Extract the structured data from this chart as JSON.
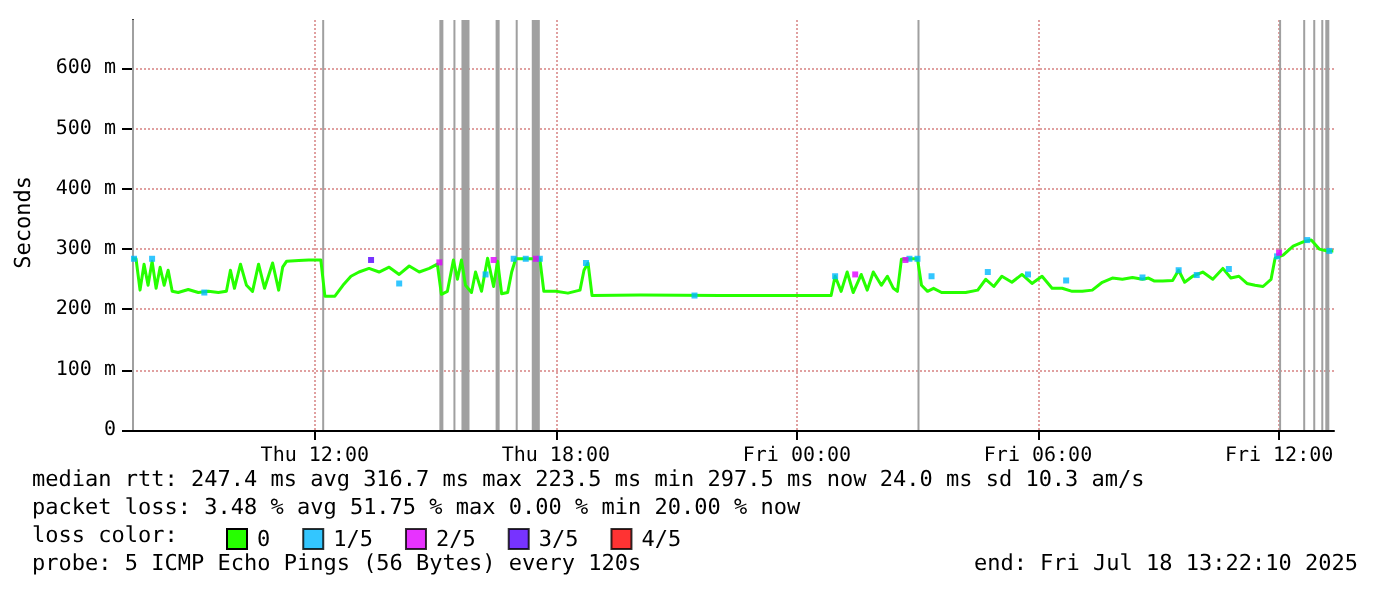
{
  "chart_data": {
    "type": "line",
    "ylabel": "Seconds",
    "xlim": [
      "2025-07-17T07:27",
      "2025-07-18T13:22"
    ],
    "xticks": [
      {
        "value": "2025-07-17T12:00",
        "label": "Thu 12:00"
      },
      {
        "value": "2025-07-17T18:00",
        "label": "Thu 18:00"
      },
      {
        "value": "2025-07-18T00:00",
        "label": "Fri 00:00"
      },
      {
        "value": "2025-07-18T06:00",
        "label": "Fri 06:00"
      },
      {
        "value": "2025-07-18T12:00",
        "label": "Fri 12:00"
      }
    ],
    "ylim": [
      0,
      680
    ],
    "yticks": [
      0,
      {
        "value": 100,
        "label": "100 m"
      },
      {
        "value": 200,
        "label": "200 m"
      },
      {
        "value": 300,
        "label": "300 m"
      },
      {
        "value": 400,
        "label": "400 m"
      },
      {
        "value": 500,
        "label": "500 m"
      },
      {
        "value": 600,
        "label": "600 m"
      }
    ],
    "grid": true,
    "legend": "bottom",
    "legend_title": "loss color:",
    "series": [
      {
        "name": "0",
        "color": "#26ff00",
        "marker": "none",
        "line_style": "solid",
        "x": [
          "2025-07-17T07:27",
          "2025-07-17T07:33",
          "2025-07-17T07:39",
          "2025-07-17T07:45",
          "2025-07-17T07:51",
          "2025-07-17T07:57",
          "2025-07-17T08:03",
          "2025-07-17T08:09",
          "2025-07-17T08:15",
          "2025-07-17T08:21",
          "2025-07-17T08:27",
          "2025-07-17T08:36",
          "2025-07-17T08:51",
          "2025-07-17T09:06",
          "2025-07-17T09:21",
          "2025-07-17T09:36",
          "2025-07-17T09:48",
          "2025-07-17T09:54",
          "2025-07-17T10:00",
          "2025-07-17T10:09",
          "2025-07-17T10:18",
          "2025-07-17T10:27",
          "2025-07-17T10:36",
          "2025-07-17T10:45",
          "2025-07-17T10:57",
          "2025-07-17T11:06",
          "2025-07-17T11:12",
          "2025-07-17T11:18",
          "2025-07-17T11:36",
          "2025-07-17T11:51",
          "2025-07-17T12:09",
          "2025-07-17T12:15",
          "2025-07-17T12:30",
          "2025-07-17T12:42",
          "2025-07-17T12:54",
          "2025-07-17T13:06",
          "2025-07-17T13:21",
          "2025-07-17T13:36",
          "2025-07-17T13:51",
          "2025-07-17T14:06",
          "2025-07-17T14:21",
          "2025-07-17T14:36",
          "2025-07-17T14:51",
          "2025-07-17T15:03",
          "2025-07-17T15:09",
          "2025-07-17T15:18",
          "2025-07-17T15:27",
          "2025-07-17T15:33",
          "2025-07-17T15:39",
          "2025-07-17T15:45",
          "2025-07-17T15:54",
          "2025-07-17T16:00",
          "2025-07-17T16:09",
          "2025-07-17T16:18",
          "2025-07-17T16:27",
          "2025-07-17T16:33",
          "2025-07-17T16:39",
          "2025-07-17T16:48",
          "2025-07-17T16:54",
          "2025-07-17T17:00",
          "2025-07-17T17:21",
          "2025-07-17T17:36",
          "2025-07-17T17:42",
          "2025-07-17T18:00",
          "2025-07-17T18:18",
          "2025-07-17T18:36",
          "2025-07-17T18:42",
          "2025-07-17T18:48",
          "2025-07-17T18:54",
          "2025-07-17T20:06",
          "2025-07-17T22:06",
          "2025-07-18T00:06",
          "2025-07-18T00:51",
          "2025-07-18T00:57",
          "2025-07-18T01:06",
          "2025-07-18T01:15",
          "2025-07-18T01:24",
          "2025-07-18T01:36",
          "2025-07-18T01:45",
          "2025-07-18T01:54",
          "2025-07-18T02:06",
          "2025-07-18T02:15",
          "2025-07-18T02:24",
          "2025-07-18T02:30",
          "2025-07-18T02:36",
          "2025-07-18T02:51",
          "2025-07-18T03:00",
          "2025-07-18T03:06",
          "2025-07-18T03:15",
          "2025-07-18T03:24",
          "2025-07-18T03:36",
          "2025-07-18T03:54",
          "2025-07-18T04:12",
          "2025-07-18T04:30",
          "2025-07-18T04:42",
          "2025-07-18T04:54",
          "2025-07-18T05:06",
          "2025-07-18T05:21",
          "2025-07-18T05:36",
          "2025-07-18T05:51",
          "2025-07-18T06:06",
          "2025-07-18T06:21",
          "2025-07-18T06:36",
          "2025-07-18T06:51",
          "2025-07-18T07:06",
          "2025-07-18T07:21",
          "2025-07-18T07:36",
          "2025-07-18T07:51",
          "2025-07-18T08:06",
          "2025-07-18T08:21",
          "2025-07-18T08:36",
          "2025-07-18T08:45",
          "2025-07-18T08:54",
          "2025-07-18T09:06",
          "2025-07-18T09:21",
          "2025-07-18T09:30",
          "2025-07-18T09:39",
          "2025-07-18T09:51",
          "2025-07-18T10:06",
          "2025-07-18T10:21",
          "2025-07-18T10:36",
          "2025-07-18T10:48",
          "2025-07-18T11:00",
          "2025-07-18T11:12",
          "2025-07-18T11:24",
          "2025-07-18T11:36",
          "2025-07-18T11:48",
          "2025-07-18T11:54",
          "2025-07-18T12:06",
          "2025-07-18T12:21",
          "2025-07-18T12:36",
          "2025-07-18T12:48",
          "2025-07-18T13:00",
          "2025-07-18T13:12",
          "2025-07-18T13:21"
        ],
        "values": [
          284,
          284,
          232,
          275,
          240,
          280,
          235,
          270,
          240,
          265,
          230,
          228,
          233,
          228,
          230,
          228,
          230,
          265,
          235,
          275,
          240,
          230,
          275,
          235,
          277,
          232,
          270,
          280,
          281,
          282,
          282,
          222,
          222,
          240,
          255,
          262,
          268,
          262,
          270,
          258,
          272,
          262,
          268,
          275,
          225,
          230,
          282,
          250,
          282,
          240,
          228,
          262,
          230,
          285,
          238,
          280,
          226,
          228,
          262,
          284,
          284,
          284,
          230,
          230,
          227,
          232,
          265,
          277,
          223,
          224,
          223,
          223,
          223,
          255,
          230,
          262,
          228,
          258,
          232,
          262,
          240,
          255,
          235,
          230,
          283,
          284,
          284,
          240,
          230,
          235,
          228,
          228,
          228,
          232,
          250,
          238,
          255,
          245,
          258,
          243,
          255,
          235,
          235,
          230,
          230,
          232,
          245,
          252,
          250,
          253,
          250,
          252,
          247,
          247,
          248,
          265,
          245,
          255,
          262,
          250,
          268,
          252,
          255,
          243,
          240,
          238,
          250,
          285,
          290,
          305,
          312,
          315,
          300,
          297,
          297
        ]
      },
      {
        "name": "1/5",
        "type": "scatter",
        "marker": "square",
        "color": "#00b8ff",
        "x": [
          "2025-07-17T07:30",
          "2025-07-17T07:57",
          "2025-07-17T09:15",
          "2025-07-17T14:06",
          "2025-07-17T16:15",
          "2025-07-17T16:57",
          "2025-07-17T17:15",
          "2025-07-17T17:36",
          "2025-07-17T18:45",
          "2025-07-17T21:27",
          "2025-07-18T00:57",
          "2025-07-18T02:48",
          "2025-07-18T03:00",
          "2025-07-18T03:21",
          "2025-07-18T04:45",
          "2025-07-18T05:45",
          "2025-07-18T06:42",
          "2025-07-18T08:36",
          "2025-07-18T09:30",
          "2025-07-18T09:57",
          "2025-07-18T10:45",
          "2025-07-18T11:57",
          "2025-07-18T12:42",
          "2025-07-18T13:15"
        ],
        "values": [
          284,
          284,
          228,
          243,
          258,
          284,
          284,
          284,
          277,
          223,
          255,
          284,
          284,
          255,
          262,
          258,
          248,
          253,
          265,
          257,
          267,
          288,
          315,
          297
        ]
      },
      {
        "name": "2/5",
        "type": "scatter",
        "marker": "square",
        "color": "#e100ff",
        "x": [
          "2025-07-17T15:06",
          "2025-07-17T16:27",
          "2025-07-17T17:30",
          "2025-07-18T01:27",
          "2025-07-18T02:42",
          "2025-07-18T12:00"
        ],
        "values": [
          278,
          282,
          284,
          258,
          282,
          294
        ]
      },
      {
        "name": "3/5",
        "type": "scatter",
        "marker": "square",
        "color": "#5500ff",
        "x": [
          "2025-07-17T13:24"
        ],
        "values": [
          282
        ]
      },
      {
        "name": "4/5",
        "type": "scatter",
        "marker": "square",
        "color": "#ff0000"
      }
    ],
    "bands": [
      {
        "axis": "x",
        "from": "2025-07-17T07:27",
        "to": "2025-07-17T07:30",
        "color": "#a0a0a0"
      },
      {
        "axis": "x",
        "from": "2025-07-17T12:11",
        "to": "2025-07-17T12:14",
        "color": "#a0a0a0"
      },
      {
        "axis": "x",
        "from": "2025-07-17T15:06",
        "to": "2025-07-17T15:12",
        "color": "#a0a0a0"
      },
      {
        "axis": "x",
        "from": "2025-07-17T15:27",
        "to": "2025-07-17T15:30",
        "color": "#a0a0a0"
      },
      {
        "axis": "x",
        "from": "2025-07-17T15:39",
        "to": "2025-07-17T15:51",
        "color": "#a0a0a0"
      },
      {
        "axis": "x",
        "from": "2025-07-17T16:30",
        "to": "2025-07-17T16:36",
        "color": "#a0a0a0"
      },
      {
        "axis": "x",
        "from": "2025-07-17T17:00",
        "to": "2025-07-17T17:03",
        "color": "#a0a0a0"
      },
      {
        "axis": "x",
        "from": "2025-07-17T17:24",
        "to": "2025-07-17T17:36",
        "color": "#a0a0a0"
      },
      {
        "axis": "x",
        "from": "2025-07-18T03:00",
        "to": "2025-07-18T03:03",
        "color": "#a0a0a0"
      },
      {
        "axis": "x",
        "from": "2025-07-18T12:00",
        "to": "2025-07-18T12:03",
        "color": "#a0a0a0"
      },
      {
        "axis": "x",
        "from": "2025-07-18T12:36",
        "to": "2025-07-18T12:39",
        "color": "#a0a0a0"
      },
      {
        "axis": "x",
        "from": "2025-07-18T12:51",
        "to": "2025-07-18T12:54",
        "color": "#a0a0a0"
      },
      {
        "axis": "x",
        "from": "2025-07-18T13:03",
        "to": "2025-07-18T13:06",
        "color": "#a0a0a0"
      },
      {
        "axis": "x",
        "from": "2025-07-18T13:09",
        "to": "2025-07-18T13:15",
        "color": "#a0a0a0"
      }
    ],
    "annotations": [
      "median rtt: 247.4 ms avg 316.7 ms max 223.5 ms min 297.5 ms now 24.0 ms sd 10.3 am/s",
      "packet loss: 3.48 % avg 51.75 % max 0.00 % min 20.00 % now",
      "probe: 5 ICMP Echo Pings (56 Bytes) every 120s",
      "end: Fri Jul 18 13:22:10 2025"
    ]
  }
}
